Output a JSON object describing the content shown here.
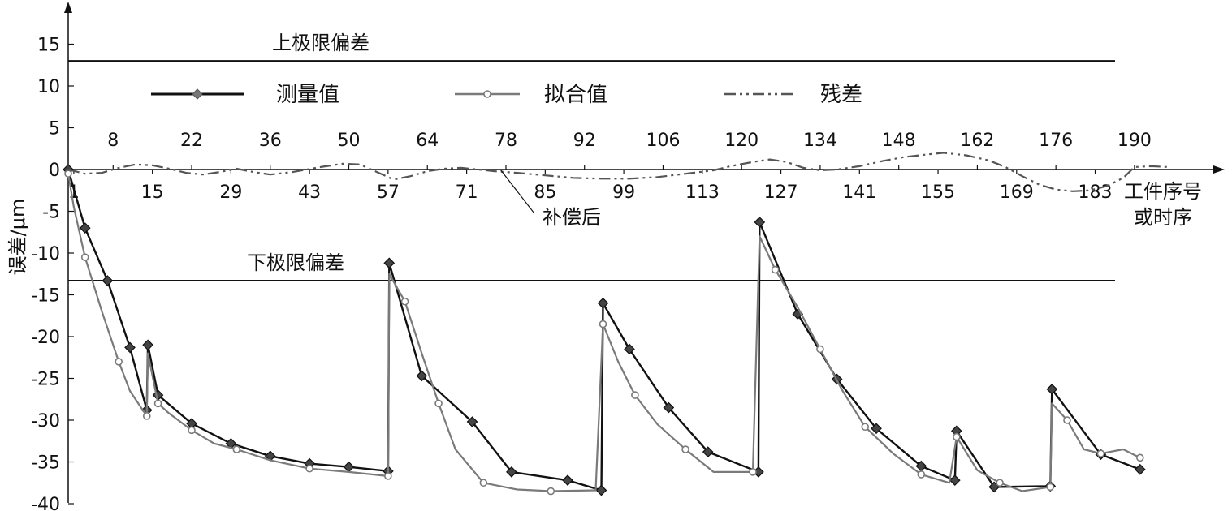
{
  "chart_data": {
    "type": "line",
    "title": "",
    "xlabel": "工件序号\n或时序",
    "ylabel": "误差/μm",
    "xlim": [
      0,
      198
    ],
    "ylim": [
      -40,
      20
    ],
    "y_ticks": [
      15,
      10,
      5,
      0,
      -5,
      -10,
      -15,
      -20,
      -25,
      -30,
      -35,
      -40
    ],
    "x_ticks_top": [
      8,
      22,
      36,
      50,
      64,
      78,
      92,
      106,
      120,
      134,
      148,
      162,
      176,
      190
    ],
    "x_ticks_bottom": [
      1,
      15,
      29,
      43,
      57,
      71,
      85,
      99,
      113,
      127,
      141,
      155,
      169,
      183
    ],
    "grid": false,
    "legend_position": "top",
    "reference_lines": [
      {
        "label": "上极限偏差",
        "y": 13
      },
      {
        "label": "下极限偏差",
        "y": -13.3
      }
    ],
    "annotations": [
      {
        "text": "补偿后",
        "x": 82,
        "y": -6
      }
    ],
    "series": [
      {
        "name": "测量值",
        "color": "#111111",
        "marker": "diamond",
        "points": [
          [
            0,
            0
          ],
          [
            3,
            -7
          ],
          [
            7,
            -13.3
          ],
          [
            11,
            -21.3
          ],
          [
            14,
            -28.8
          ],
          [
            14.2,
            -21
          ],
          [
            16,
            -27
          ],
          [
            22,
            -30.4
          ],
          [
            29,
            -32.8
          ],
          [
            36,
            -34.3
          ],
          [
            43,
            -35.2
          ],
          [
            50,
            -35.6
          ],
          [
            57,
            -36.1
          ],
          [
            57.2,
            -11.2
          ],
          [
            63,
            -24.7
          ],
          [
            72,
            -30.2
          ],
          [
            79,
            -36.2
          ],
          [
            89,
            -37.2
          ],
          [
            95,
            -38.4
          ],
          [
            95.3,
            -16
          ],
          [
            100,
            -21.5
          ],
          [
            107,
            -28.5
          ],
          [
            114,
            -33.8
          ],
          [
            123,
            -36.2
          ],
          [
            123.2,
            -6.3
          ],
          [
            130,
            -17.3
          ],
          [
            137,
            -25.1
          ],
          [
            144,
            -31
          ],
          [
            152,
            -35.5
          ],
          [
            158,
            -37.2
          ],
          [
            158.3,
            -31.3
          ],
          [
            165,
            -38
          ],
          [
            175,
            -37.9
          ],
          [
            175.3,
            -26.3
          ],
          [
            184,
            -34.1
          ],
          [
            191,
            -35.9
          ]
        ]
      },
      {
        "name": "拟合值",
        "color": "#7a7a7a",
        "marker": "circle",
        "points": [
          [
            0,
            -0.5
          ],
          [
            1,
            -4.5
          ],
          [
            3,
            -10.5
          ],
          [
            6,
            -17
          ],
          [
            9,
            -23
          ],
          [
            11,
            -26.5
          ],
          [
            14,
            -29.5
          ],
          [
            14.2,
            -22
          ],
          [
            16,
            -28
          ],
          [
            18,
            -29.2
          ],
          [
            22,
            -31.2
          ],
          [
            26,
            -32.8
          ],
          [
            30,
            -33.5
          ],
          [
            36,
            -34.8
          ],
          [
            43,
            -35.8
          ],
          [
            50,
            -36.2
          ],
          [
            57,
            -36.7
          ],
          [
            57.2,
            -12.5
          ],
          [
            60,
            -15.8
          ],
          [
            63,
            -22
          ],
          [
            66,
            -28
          ],
          [
            69,
            -33.5
          ],
          [
            74,
            -37.5
          ],
          [
            80,
            -38.3
          ],
          [
            86,
            -38.5
          ],
          [
            94,
            -38.4
          ],
          [
            95.3,
            -18.5
          ],
          [
            98,
            -23
          ],
          [
            101,
            -27
          ],
          [
            105,
            -30.5
          ],
          [
            110,
            -33.5
          ],
          [
            115,
            -36.2
          ],
          [
            122,
            -36.2
          ],
          [
            123.2,
            -8
          ],
          [
            126,
            -12
          ],
          [
            130,
            -16.5
          ],
          [
            134,
            -21.5
          ],
          [
            138,
            -26.5
          ],
          [
            142,
            -30.8
          ],
          [
            147,
            -34
          ],
          [
            152,
            -36.5
          ],
          [
            157,
            -37.5
          ],
          [
            158.3,
            -32
          ],
          [
            162,
            -36
          ],
          [
            166,
            -37.5
          ],
          [
            170,
            -38.5
          ],
          [
            175,
            -38
          ],
          [
            175.3,
            -28
          ],
          [
            178,
            -30
          ],
          [
            181,
            -33.5
          ],
          [
            184,
            -34
          ],
          [
            188,
            -33.5
          ],
          [
            191,
            -34.5
          ]
        ]
      },
      {
        "name": "残差",
        "color": "#555555",
        "marker": "none",
        "points": [
          [
            0,
            0
          ],
          [
            3,
            -0.5
          ],
          [
            6,
            -0.4
          ],
          [
            9,
            0.2
          ],
          [
            12,
            0.6
          ],
          [
            15,
            0.5
          ],
          [
            18,
            0.1
          ],
          [
            21,
            -0.4
          ],
          [
            24,
            -0.6
          ],
          [
            27,
            -0.3
          ],
          [
            30,
            0.1
          ],
          [
            33,
            -0.3
          ],
          [
            36,
            -0.6
          ],
          [
            40,
            -0.3
          ],
          [
            45,
            0.3
          ],
          [
            49,
            0.7
          ],
          [
            52,
            0.6
          ],
          [
            55,
            -0.3
          ],
          [
            58,
            -1.2
          ],
          [
            61,
            -0.8
          ],
          [
            64,
            -0.2
          ],
          [
            67,
            0.1
          ],
          [
            70,
            0.2
          ],
          [
            73,
            0
          ],
          [
            76,
            -0.2
          ],
          [
            80,
            -0.4
          ],
          [
            85,
            -0.7
          ],
          [
            90,
            -1
          ],
          [
            95,
            -1.1
          ],
          [
            100,
            -1.1
          ],
          [
            105,
            -0.9
          ],
          [
            110,
            -0.5
          ],
          [
            115,
            -0.1
          ],
          [
            118,
            0.4
          ],
          [
            122,
            0.9
          ],
          [
            125,
            1.2
          ],
          [
            128,
            0.9
          ],
          [
            131,
            0.2
          ],
          [
            134,
            -0.1
          ],
          [
            137,
            0
          ],
          [
            141,
            0.4
          ],
          [
            145,
            1
          ],
          [
            149,
            1.5
          ],
          [
            153,
            1.8
          ],
          [
            156,
            2
          ],
          [
            160,
            1.7
          ],
          [
            164,
            1.1
          ],
          [
            167,
            0.3
          ],
          [
            170,
            -0.8
          ],
          [
            173,
            -1.8
          ],
          [
            176,
            -2.4
          ],
          [
            179,
            -2.6
          ],
          [
            182,
            -2.5
          ],
          [
            185,
            -2
          ],
          [
            188,
            -1
          ],
          [
            190,
            0.3
          ],
          [
            193,
            0.4
          ],
          [
            196,
            0.3
          ]
        ]
      }
    ]
  }
}
